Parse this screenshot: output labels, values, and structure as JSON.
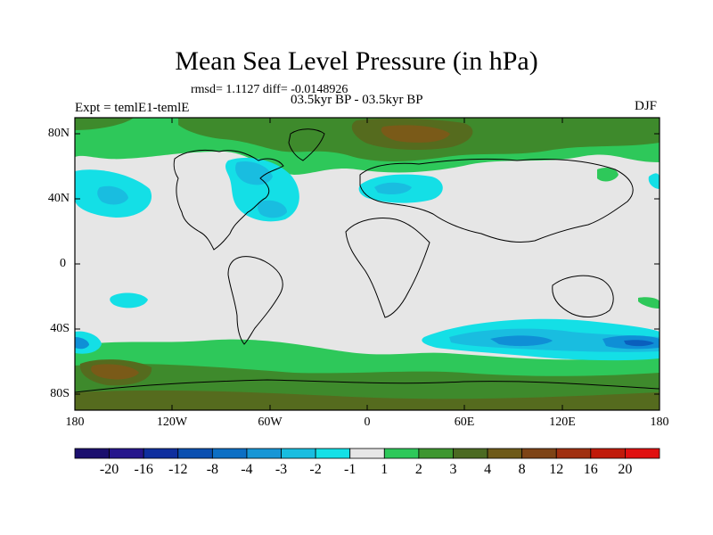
{
  "title": "Mean Sea Level Pressure (in hPa)",
  "stats": "rmsd= 1.1127 diff= -0.0148926",
  "period": "03.5kyr BP - 03.5kyr BP",
  "expt": "Expt = temlE1-temlE",
  "season": "DJF",
  "lat_ticks": [
    "80N",
    "40N",
    "0",
    "40S",
    "80S"
  ],
  "lon_ticks": [
    "180",
    "120W",
    "60W",
    "0",
    "60E",
    "120E",
    "180"
  ],
  "colorbar": {
    "labels": [
      "-20",
      "-16",
      "-12",
      "-8",
      "-4",
      "-3",
      "-2",
      "-1",
      "1",
      "2",
      "3",
      "4",
      "8",
      "12",
      "16",
      "20"
    ],
    "colors": [
      "#1b0f6e",
      "#26168c",
      "#0f2f9e",
      "#0a4fb0",
      "#0d6fc4",
      "#1796d6",
      "#19bde0",
      "#14e0e6",
      "#e6e6e6",
      "#2ec85a",
      "#3e9630",
      "#4b6a22",
      "#6e5a18",
      "#7e4416",
      "#a03010",
      "#c01a0a",
      "#e01010"
    ]
  },
  "colors": {
    "neutral": "#e6e6e6",
    "cyan": "#14dfe6",
    "light_blue": "#19bde0",
    "blue": "#0f8fd6",
    "dark_blue": "#0a5fbd",
    "green": "#2ec85a",
    "dark_green": "#3e8a2c",
    "olive": "#556b1e",
    "brown": "#7a5a18"
  }
}
